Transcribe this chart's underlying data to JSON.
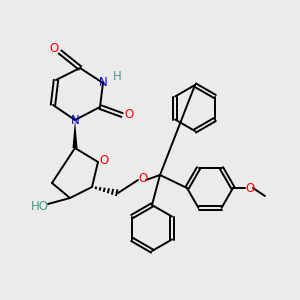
{
  "background_color": "#ebebeb",
  "atom_colors": {
    "O": "#ff0000",
    "N": "#0000cc",
    "H_label": "#4a9a8a",
    "C": "#000000"
  },
  "figsize": [
    3.0,
    3.0
  ],
  "dpi": 100
}
